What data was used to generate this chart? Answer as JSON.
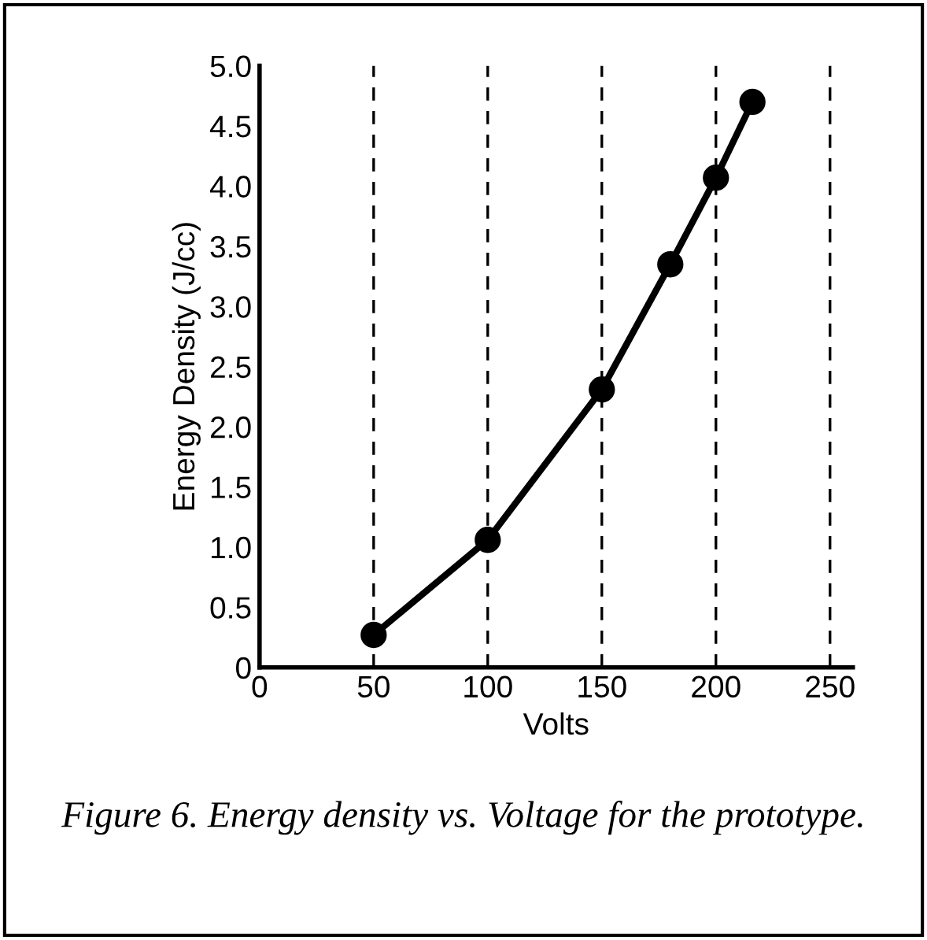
{
  "chart_data": {
    "type": "line",
    "xlabel": "Volts",
    "ylabel": "Energy Density (J/cc)",
    "x": [
      50,
      100,
      150,
      180,
      200,
      216
    ],
    "series": [
      {
        "color": "#000000",
        "values": [
          0.27,
          1.06,
          2.31,
          3.35,
          4.07,
          4.7
        ]
      }
    ],
    "xlim": [
      0,
      260
    ],
    "xticks": [
      0,
      50,
      100,
      150,
      200,
      250
    ],
    "ylim": [
      0,
      5
    ],
    "yticks": [
      {
        "value": 0,
        "label": "0"
      },
      {
        "value": 0.5,
        "label": "0.5"
      },
      {
        "value": 1,
        "label": "1.0"
      },
      {
        "value": 1.5,
        "label": "1.5"
      },
      {
        "value": 2,
        "label": "2.0"
      },
      {
        "value": 2.5,
        "label": "2.5"
      },
      {
        "value": 3,
        "label": "3.0"
      },
      {
        "value": 3.5,
        "label": "3.5"
      },
      {
        "value": 4,
        "label": "4.0"
      },
      {
        "value": 4.5,
        "label": "4.5"
      },
      {
        "value": 5,
        "label": "5.0"
      }
    ],
    "grid": "x",
    "marker": "circle",
    "line_style": "solid",
    "legend": false,
    "annotations": [
      "Figure 6. Energy density vs. Voltage for the prototype."
    ]
  }
}
